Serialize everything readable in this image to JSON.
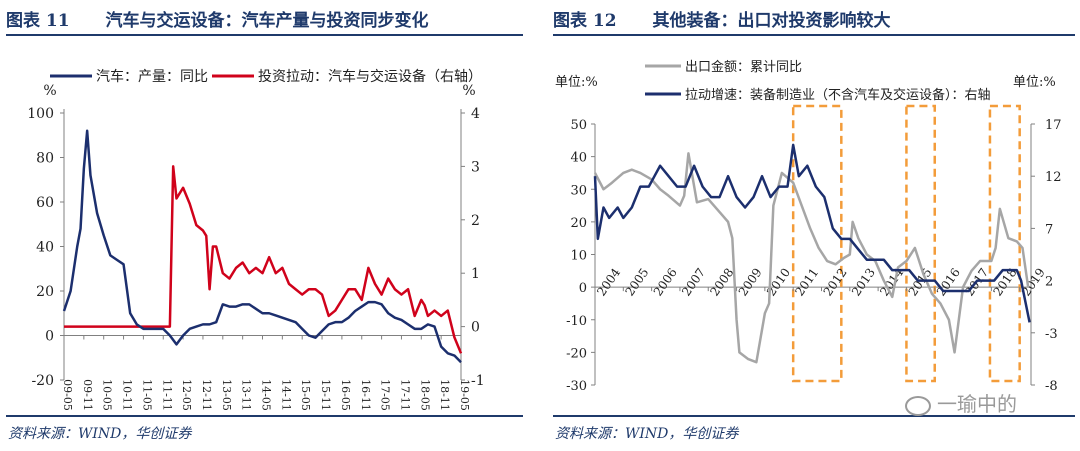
{
  "left": {
    "fig_label": "图表 11",
    "title": "汽车与交运设备：汽车产量与投资同步变化",
    "source": "资料来源：WIND，华创证券"
  },
  "right": {
    "fig_label": "图表 12",
    "title": "其他装备：出口对投资影响较大",
    "source": "资料来源：WIND，华创证券"
  },
  "watermark": "一瑜中的",
  "colors": {
    "navy": "#1c2f6e",
    "red": "#d0021b",
    "gray": "#a6a6a6",
    "orange": "#f39c3a",
    "rule": "#1f3a6b"
  },
  "chart_data": [
    {
      "type": "line",
      "ylabel_left": "%",
      "ylabel_right": "%",
      "ylim": [
        -20,
        100
      ],
      "y2lim": [
        -1,
        4
      ],
      "yticks": [
        -20,
        0,
        20,
        40,
        60,
        80,
        100
      ],
      "y2ticks": [
        -1,
        0,
        1,
        2,
        3,
        4
      ],
      "x_ticks": [
        "09-05",
        "09-11",
        "10-05",
        "10-11",
        "11-05",
        "11-11",
        "12-05",
        "12-11",
        "13-05",
        "13-11",
        "14-05",
        "14-11",
        "15-05",
        "15-11",
        "16-05",
        "16-11",
        "17-05",
        "17-11",
        "18-05",
        "18-11",
        "19-05"
      ],
      "series": [
        {
          "name": "汽车：产量：同比",
          "axis": "left",
          "x": [
            "09-05",
            "09-07",
            "09-08",
            "09-09",
            "09-10",
            "09-11",
            "09-12",
            "10-01",
            "10-03",
            "10-05",
            "10-07",
            "10-09",
            "10-11",
            "11-01",
            "11-03",
            "11-05",
            "11-07",
            "11-09",
            "11-11",
            "12-01",
            "12-03",
            "12-05",
            "12-07",
            "12-09",
            "12-11",
            "13-01",
            "13-03",
            "13-05",
            "13-07",
            "13-09",
            "13-11",
            "14-01",
            "14-03",
            "14-05",
            "14-07",
            "14-09",
            "14-11",
            "15-01",
            "15-03",
            "15-05",
            "15-07",
            "15-09",
            "15-11",
            "16-01",
            "16-03",
            "16-05",
            "16-07",
            "16-09",
            "16-11",
            "17-01",
            "17-03",
            "17-05",
            "17-07",
            "17-09",
            "17-11",
            "18-01",
            "18-03",
            "18-05",
            "18-07",
            "18-09",
            "18-11",
            "19-01",
            "19-03",
            "19-05"
          ],
          "values": [
            11,
            20,
            30,
            40,
            48,
            75,
            92,
            72,
            55,
            45,
            36,
            34,
            32,
            10,
            5,
            3,
            3,
            3,
            3,
            0,
            -4,
            0,
            3,
            4,
            5,
            5,
            6,
            14,
            13,
            13,
            14,
            14,
            12,
            10,
            10,
            9,
            8,
            7,
            6,
            3,
            0,
            -1,
            2,
            5,
            6,
            6,
            8,
            11,
            13,
            15,
            15,
            14,
            10,
            8,
            7,
            5,
            3,
            3,
            5,
            4,
            -5,
            -8,
            -9,
            -12
          ]
        },
        {
          "name": "投资拉动：汽车与交运设备（右轴）",
          "axis": "right",
          "x": [
            "09-05",
            "11-08",
            "11-09",
            "11-10",
            "11-11",
            "11-12",
            "12-01",
            "12-02",
            "12-03",
            "12-05",
            "12-07",
            "12-09",
            "12-11",
            "12-12",
            "13-01",
            "13-02",
            "13-03",
            "13-05",
            "13-07",
            "13-09",
            "13-11",
            "14-01",
            "14-03",
            "14-05",
            "14-07",
            "14-09",
            "14-11",
            "15-01",
            "15-03",
            "15-05",
            "15-07",
            "15-09",
            "15-11",
            "16-01",
            "16-03",
            "16-05",
            "16-07",
            "16-09",
            "16-11",
            "17-01",
            "17-03",
            "17-05",
            "17-07",
            "17-09",
            "17-11",
            "18-01",
            "18-03",
            "18-05",
            "18-06",
            "18-07",
            "18-09",
            "18-11",
            "19-01",
            "19-03",
            "19-05"
          ],
          "values": [
            0,
            0,
            0,
            0,
            0,
            0,
            0,
            3,
            2.4,
            2.6,
            2.3,
            1.9,
            1.8,
            1.7,
            0.7,
            1.5,
            1.5,
            1.0,
            0.9,
            1.1,
            1.2,
            1.0,
            1.1,
            1.0,
            1.3,
            1.0,
            1.1,
            0.8,
            0.7,
            0.6,
            0.7,
            0.7,
            0.6,
            0.2,
            0.3,
            0.5,
            0.7,
            0.7,
            0.5,
            1.1,
            0.8,
            0.6,
            0.9,
            0.7,
            0.6,
            0.7,
            0.2,
            0.5,
            0.4,
            0.2,
            0.3,
            0.2,
            0.3,
            -0.2,
            -0.5
          ]
        }
      ]
    },
    {
      "type": "line",
      "ylabel_left": "单位:%",
      "ylabel_right": "单位:%",
      "ylim": [
        -30,
        50
      ],
      "y2lim": [
        -8,
        17
      ],
      "yticks": [
        -30,
        -20,
        -10,
        0,
        10,
        20,
        30,
        40,
        50
      ],
      "y2ticks": [
        -8,
        -3,
        2,
        7,
        12,
        17
      ],
      "x_ticks": [
        "2004",
        "2005",
        "2006",
        "2007",
        "2008",
        "2009",
        "2010",
        "2011",
        "2012",
        "2013",
        "2014",
        "2015",
        "2016",
        "2017",
        "2018",
        "2019"
      ],
      "highlight_periods": [
        [
          2011.0,
          2012.7
        ],
        [
          2015.0,
          2016.0
        ],
        [
          2017.95,
          2019.0
        ]
      ],
      "series": [
        {
          "name": "出口金额：累计同比",
          "axis": "left",
          "x": [
            2004.0,
            2004.3,
            2004.6,
            2005.0,
            2005.3,
            2005.6,
            2006.0,
            2006.3,
            2006.6,
            2007.0,
            2007.15,
            2007.3,
            2007.6,
            2008.0,
            2008.3,
            2008.5,
            2008.7,
            2008.85,
            2009.0,
            2009.1,
            2009.4,
            2009.7,
            2010.0,
            2010.15,
            2010.3,
            2010.6,
            2011.0,
            2011.3,
            2011.6,
            2011.9,
            2012.2,
            2012.5,
            2012.8,
            2013.0,
            2013.1,
            2013.3,
            2013.6,
            2013.9,
            2014.2,
            2014.5,
            2014.7,
            2015.0,
            2015.3,
            2015.6,
            2015.9,
            2016.2,
            2016.5,
            2016.7,
            2016.85,
            2017.0,
            2017.3,
            2017.6,
            2018.0,
            2018.15,
            2018.3,
            2018.6,
            2018.9,
            2019.1,
            2019.3
          ],
          "values": [
            35,
            30,
            32,
            35,
            36,
            35,
            33,
            30,
            28,
            25,
            28,
            41,
            26,
            27,
            24,
            22,
            20,
            15,
            -10,
            -20,
            -22,
            -23,
            -8,
            -5,
            25,
            35,
            32,
            25,
            18,
            12,
            8,
            7,
            9,
            10,
            20,
            15,
            10,
            8,
            2,
            -3,
            6,
            8,
            12,
            4,
            -2,
            -5,
            -10,
            -20,
            -10,
            0,
            5,
            8,
            8,
            12,
            24,
            15,
            14,
            12,
            0
          ]
        },
        {
          "name": "拉动增速：装备制造业（不含汽车及交运设备）：右轴",
          "axis": "right",
          "x": [
            2004.0,
            2004.1,
            2004.3,
            2004.5,
            2004.8,
            2005.0,
            2005.3,
            2005.6,
            2005.9,
            2006.1,
            2006.3,
            2006.6,
            2006.9,
            2007.2,
            2007.5,
            2007.8,
            2008.1,
            2008.4,
            2008.7,
            2009.0,
            2009.3,
            2009.6,
            2009.9,
            2010.2,
            2010.5,
            2010.8,
            2011.0,
            2011.2,
            2011.5,
            2011.8,
            2012.1,
            2012.4,
            2012.7,
            2013.0,
            2013.3,
            2013.6,
            2013.9,
            2014.2,
            2014.5,
            2014.8,
            2015.1,
            2015.4,
            2015.7,
            2016.0,
            2016.3,
            2016.6,
            2016.9,
            2017.2,
            2017.5,
            2017.8,
            2018.1,
            2018.4,
            2018.7,
            2018.9,
            2019.05,
            2019.2,
            2019.35
          ],
          "values": [
            12,
            6,
            9,
            8,
            9,
            8,
            9,
            11,
            11,
            12,
            13,
            12,
            11,
            11,
            13,
            11,
            10,
            10,
            12,
            10,
            9,
            10,
            12,
            10,
            11,
            11,
            15,
            12,
            13,
            11,
            10,
            7,
            6,
            6,
            5,
            4,
            4,
            4,
            3,
            3,
            3,
            2,
            2,
            2,
            1,
            1,
            1,
            1,
            2,
            2,
            2,
            3,
            3,
            3,
            2,
            0,
            -2
          ]
        }
      ]
    }
  ]
}
